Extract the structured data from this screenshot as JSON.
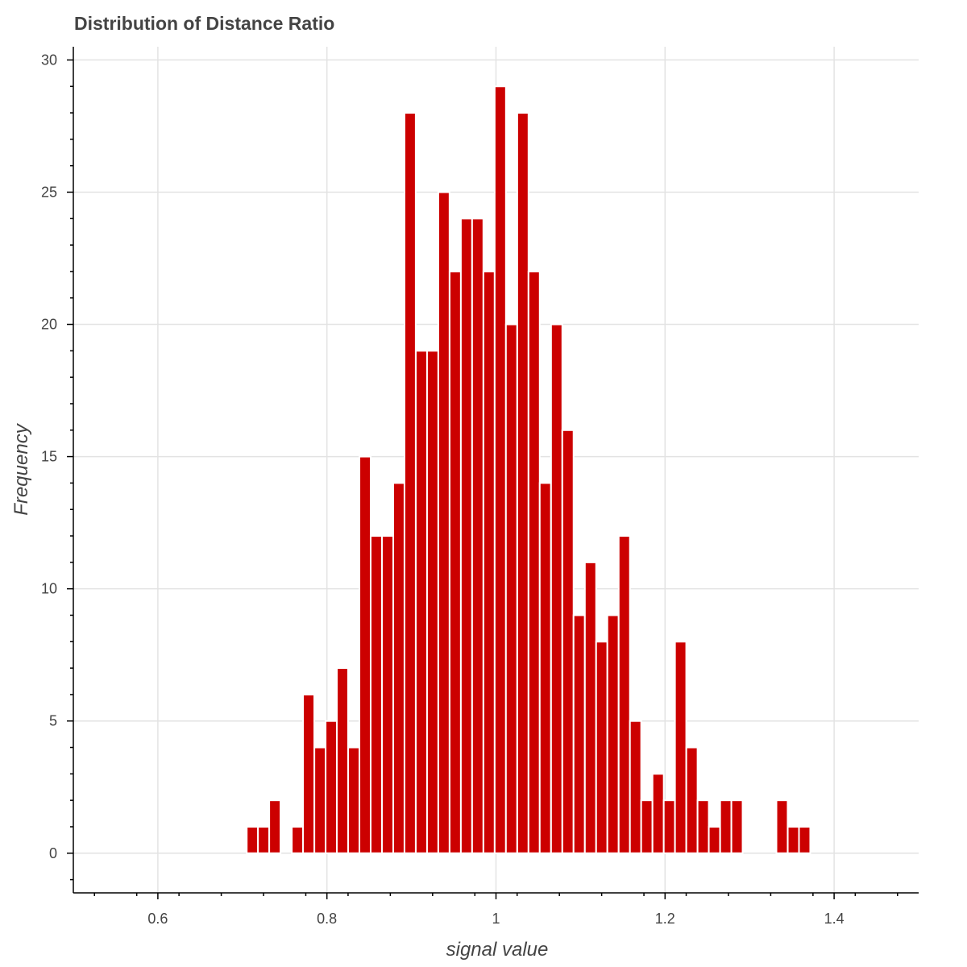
{
  "chart_data": {
    "type": "bar",
    "title": "Distribution of Distance Ratio",
    "xlabel": "signal value",
    "ylabel": "Frequency",
    "xlim": [
      0.5,
      1.5
    ],
    "ylim": [
      -1.5,
      30.5
    ],
    "bin_width": 0.0133,
    "x_ticks": [
      "0.6",
      "0.8",
      "1",
      "1.2",
      "1.4"
    ],
    "y_ticks": [
      "0",
      "5",
      "10",
      "15",
      "20",
      "25",
      "30"
    ],
    "grid": true,
    "bar_color": "#cc0000",
    "bins": [
      {
        "x": 0.7118,
        "y": 1
      },
      {
        "x": 0.7251,
        "y": 1
      },
      {
        "x": 0.7384,
        "y": 2
      },
      {
        "x": 0.7651,
        "y": 1
      },
      {
        "x": 0.7784,
        "y": 6
      },
      {
        "x": 0.7918,
        "y": 4
      },
      {
        "x": 0.8051,
        "y": 5
      },
      {
        "x": 0.8184,
        "y": 7
      },
      {
        "x": 0.8318,
        "y": 4
      },
      {
        "x": 0.8451,
        "y": 15
      },
      {
        "x": 0.8584,
        "y": 12
      },
      {
        "x": 0.8718,
        "y": 12
      },
      {
        "x": 0.8851,
        "y": 14
      },
      {
        "x": 0.8984,
        "y": 28
      },
      {
        "x": 0.9118,
        "y": 19
      },
      {
        "x": 0.9251,
        "y": 19
      },
      {
        "x": 0.9384,
        "y": 25
      },
      {
        "x": 0.9518,
        "y": 22
      },
      {
        "x": 0.9651,
        "y": 24
      },
      {
        "x": 0.9784,
        "y": 24
      },
      {
        "x": 0.9918,
        "y": 22
      },
      {
        "x": 1.0051,
        "y": 29
      },
      {
        "x": 1.0184,
        "y": 20
      },
      {
        "x": 1.0318,
        "y": 28
      },
      {
        "x": 1.0451,
        "y": 22
      },
      {
        "x": 1.0584,
        "y": 14
      },
      {
        "x": 1.0718,
        "y": 20
      },
      {
        "x": 1.0851,
        "y": 16
      },
      {
        "x": 1.0984,
        "y": 9
      },
      {
        "x": 1.1118,
        "y": 11
      },
      {
        "x": 1.1251,
        "y": 8
      },
      {
        "x": 1.1384,
        "y": 9
      },
      {
        "x": 1.1518,
        "y": 12
      },
      {
        "x": 1.1651,
        "y": 5
      },
      {
        "x": 1.1784,
        "y": 2
      },
      {
        "x": 1.1918,
        "y": 3
      },
      {
        "x": 1.2051,
        "y": 2
      },
      {
        "x": 1.2184,
        "y": 8
      },
      {
        "x": 1.2318,
        "y": 4
      },
      {
        "x": 1.2451,
        "y": 2
      },
      {
        "x": 1.2584,
        "y": 1
      },
      {
        "x": 1.2718,
        "y": 2
      },
      {
        "x": 1.2851,
        "y": 2
      },
      {
        "x": 1.3384,
        "y": 2
      },
      {
        "x": 1.3518,
        "y": 1
      },
      {
        "x": 1.3651,
        "y": 1
      }
    ]
  }
}
